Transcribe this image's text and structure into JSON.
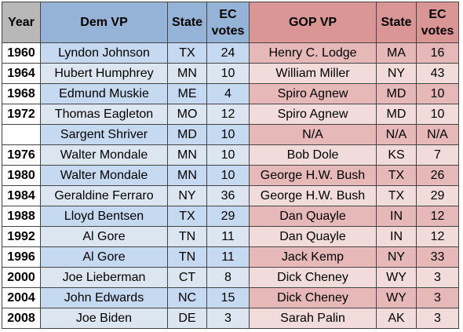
{
  "headers": {
    "year": "Year",
    "dem_vp": "Dem VP",
    "dem_state": "State",
    "dem_ec_line1": "EC",
    "dem_ec_line2": "votes",
    "gop_vp": "GOP VP",
    "gop_state": "State",
    "gop_ec_line1": "EC",
    "gop_ec_line2": "votes"
  },
  "rows": [
    {
      "year": "1960",
      "dem_vp": "Lyndon Johnson",
      "dem_state": "TX",
      "dem_ec": "24",
      "gop_vp": "Henry C. Lodge",
      "gop_state": "MA",
      "gop_ec": "16"
    },
    {
      "year": "1964",
      "dem_vp": "Hubert Humphrey",
      "dem_state": "MN",
      "dem_ec": "10",
      "gop_vp": "William Miller",
      "gop_state": "NY",
      "gop_ec": "43"
    },
    {
      "year": "1968",
      "dem_vp": "Edmund Muskie",
      "dem_state": "ME",
      "dem_ec": "4",
      "gop_vp": "Spiro Agnew",
      "gop_state": "MD",
      "gop_ec": "10"
    },
    {
      "year": "1972",
      "dem_vp": "Thomas Eagleton",
      "dem_state": "MO",
      "dem_ec": "12",
      "gop_vp": "Spiro Agnew",
      "gop_state": "MD",
      "gop_ec": "10"
    },
    {
      "year": "",
      "dem_vp": "Sargent Shriver",
      "dem_state": "MD",
      "dem_ec": "10",
      "gop_vp": "N/A",
      "gop_state": "N/A",
      "gop_ec": "N/A"
    },
    {
      "year": "1976",
      "dem_vp": "Walter Mondale",
      "dem_state": "MN",
      "dem_ec": "10",
      "gop_vp": "Bob Dole",
      "gop_state": "KS",
      "gop_ec": "7"
    },
    {
      "year": "1980",
      "dem_vp": "Walter Mondale",
      "dem_state": "MN",
      "dem_ec": "10",
      "gop_vp": "George H.W. Bush",
      "gop_state": "TX",
      "gop_ec": "26"
    },
    {
      "year": "1984",
      "dem_vp": "Geraldine Ferraro",
      "dem_state": "NY",
      "dem_ec": "36",
      "gop_vp": "George H.W. Bush",
      "gop_state": "TX",
      "gop_ec": "29"
    },
    {
      "year": "1988",
      "dem_vp": "Lloyd Bentsen",
      "dem_state": "TX",
      "dem_ec": "29",
      "gop_vp": "Dan Quayle",
      "gop_state": "IN",
      "gop_ec": "12"
    },
    {
      "year": "1992",
      "dem_vp": "Al Gore",
      "dem_state": "TN",
      "dem_ec": "11",
      "gop_vp": "Dan Quayle",
      "gop_state": "IN",
      "gop_ec": "12"
    },
    {
      "year": "1996",
      "dem_vp": "Al Gore",
      "dem_state": "TN",
      "dem_ec": "11",
      "gop_vp": "Jack Kemp",
      "gop_state": "NY",
      "gop_ec": "33"
    },
    {
      "year": "2000",
      "dem_vp": "Joe Lieberman",
      "dem_state": "CT",
      "dem_ec": "8",
      "gop_vp": "Dick Cheney",
      "gop_state": "WY",
      "gop_ec": "3"
    },
    {
      "year": "2004",
      "dem_vp": "John Edwards",
      "dem_state": "NC",
      "dem_ec": "15",
      "gop_vp": "Dick Cheney",
      "gop_state": "WY",
      "gop_ec": "3"
    },
    {
      "year": "2008",
      "dem_vp": "Joe Biden",
      "dem_state": "DE",
      "dem_ec": "3",
      "gop_vp": "Sarah Palin",
      "gop_state": "AK",
      "gop_ec": "3"
    }
  ],
  "colors": {
    "header_year": "#b8b8b8",
    "header_dem": "#95b3d7",
    "header_gop": "#da9694",
    "dem_band_a": "#c5d9f1",
    "dem_band_b": "#dce6f1",
    "gop_band_a": "#e6b8b7",
    "gop_band_b": "#f2dcdb"
  }
}
